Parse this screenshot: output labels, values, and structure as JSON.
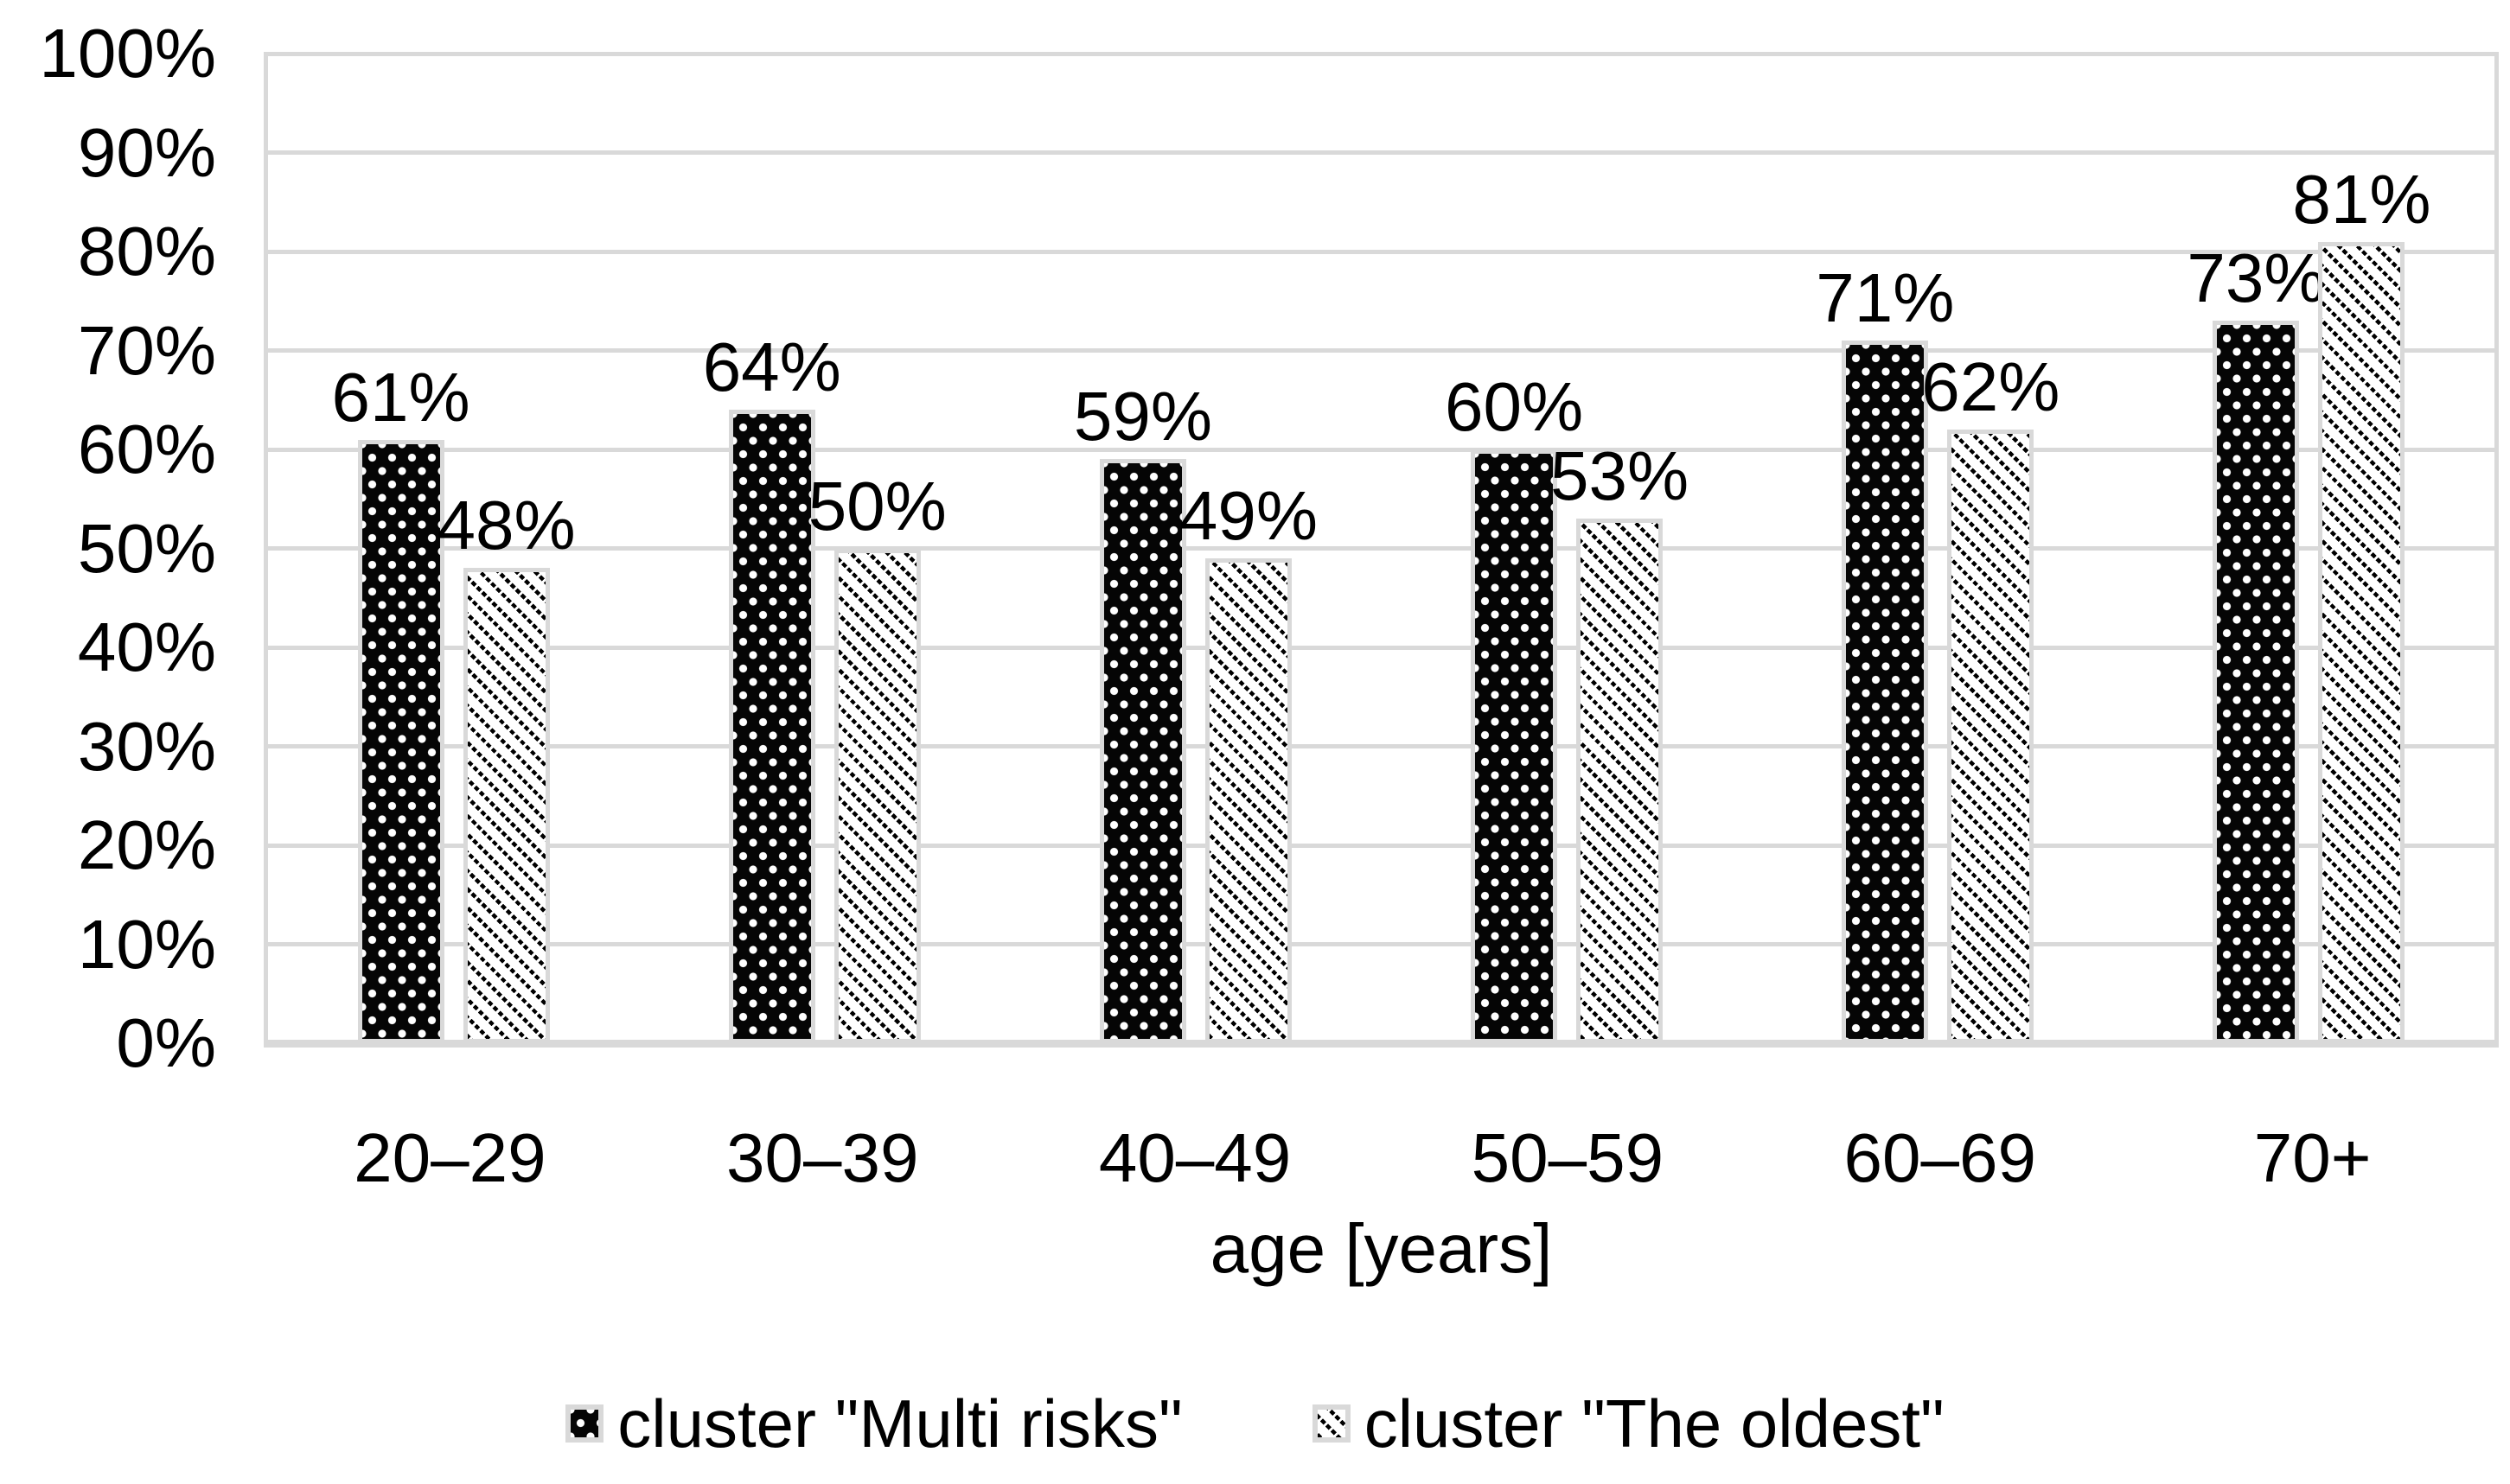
{
  "chart_data": {
    "type": "bar",
    "title": "",
    "xlabel": "age [years]",
    "ylabel": "",
    "categories": [
      "20–29",
      "30–39",
      "40–49",
      "50–59",
      "60–69",
      "70+"
    ],
    "series": [
      {
        "name": "cluster \"Multi risks\"",
        "pattern": "white-dots-on-black",
        "values": [
          61,
          64,
          59,
          60,
          71,
          73
        ]
      },
      {
        "name": "cluster \"The oldest\"",
        "pattern": "black-dashed-diagonal-stripes-on-white",
        "values": [
          48,
          50,
          49,
          53,
          62,
          81
        ]
      }
    ],
    "data_labels": {
      "multi_risks": [
        "61%",
        "64%",
        "59%",
        "60%",
        "71%",
        "73%"
      ],
      "the_oldest": [
        "48%",
        "50%",
        "49%",
        "53%",
        "62%",
        "81%"
      ]
    },
    "ylim": [
      0,
      100
    ],
    "yticks": [
      0,
      10,
      20,
      30,
      40,
      50,
      60,
      70,
      80,
      90,
      100
    ],
    "yticklabels": [
      "0%",
      "10%",
      "20%",
      "30%",
      "40%",
      "50%",
      "60%",
      "70%",
      "80%",
      "90%",
      "100%"
    ],
    "grid": true,
    "legend_position": "bottom",
    "colors": {
      "grid": "#d9d9d9",
      "bar_border": "#d9d9d9",
      "text": "#000000",
      "series1_fill": "#000000",
      "series1_dots": "#ffffff",
      "series2_fill": "#ffffff",
      "series2_stripes": "#000000"
    }
  }
}
